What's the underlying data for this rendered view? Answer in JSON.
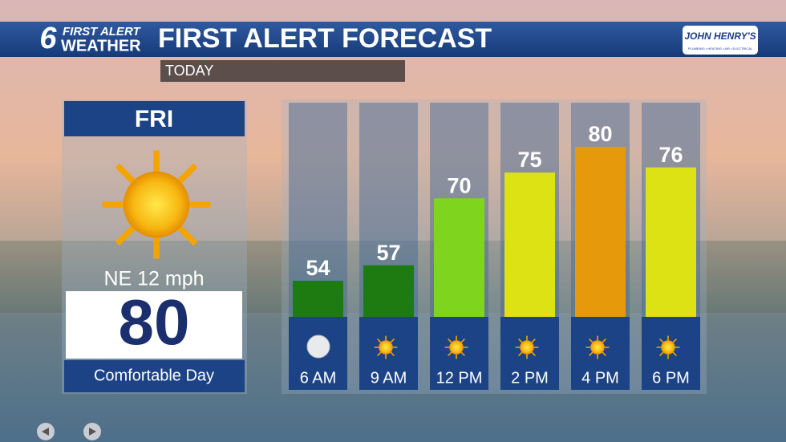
{
  "header": {
    "logo_number": "6",
    "logo_line1": "FIRST ALERT",
    "logo_line2": "WEATHER",
    "sponsor": "JOHN HENRY'S",
    "sponsor_tagline": "PLUMBING • HEATING • AIR • ELECTRICAL"
  },
  "panel": {
    "day": "FRI",
    "wind": "NE 12 mph",
    "high": 80,
    "description": "Comfortable Day"
  },
  "chart_data": {
    "type": "bar",
    "title": "FIRST ALERT FORECAST",
    "subtitle": "TODAY",
    "categories": [
      "6 AM",
      "9 AM",
      "12 PM",
      "2 PM",
      "4 PM",
      "6 PM"
    ],
    "values": [
      54,
      57,
      70,
      75,
      80,
      76
    ],
    "colors": [
      "#1d7b12",
      "#1d7b12",
      "#7fd51e",
      "#dde215",
      "#e69a0b",
      "#dde215"
    ]
  }
}
